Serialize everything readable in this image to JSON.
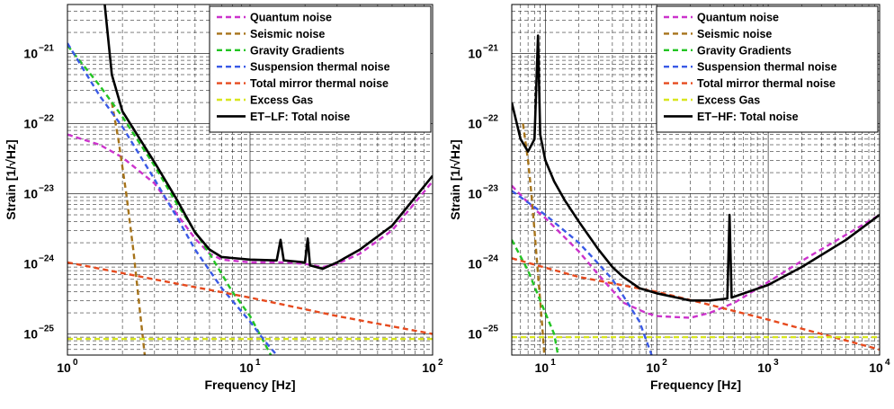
{
  "chart_data": [
    {
      "type": "line",
      "title": "",
      "xlabel": "Frequency [Hz]",
      "ylabel": "Strain [1/√Hz]",
      "x_scale": "log",
      "y_scale": "log",
      "xlim": [
        1,
        100
      ],
      "ylim": [
        5e-26,
        5e-21
      ],
      "x_ticks": [
        {
          "base": "10",
          "exp": "0"
        },
        {
          "base": "10",
          "exp": "1"
        },
        {
          "base": "10",
          "exp": "2"
        }
      ],
      "y_ticks": [
        {
          "base": "10",
          "exp": "−25"
        },
        {
          "base": "10",
          "exp": "−24"
        },
        {
          "base": "10",
          "exp": "−23"
        },
        {
          "base": "10",
          "exp": "−22"
        },
        {
          "base": "10",
          "exp": "−21"
        }
      ],
      "grid": true,
      "legend_position": "top-right",
      "series": [
        {
          "name": "Quantum noise",
          "color": "#cc33cc",
          "style": "dashed",
          "points": [
            [
              1,
              7e-23
            ],
            [
              1.5,
              5e-23
            ],
            [
              2,
              3.3e-23
            ],
            [
              3,
              1.4e-23
            ],
            [
              4,
              5e-24
            ],
            [
              5,
              2.3e-24
            ],
            [
              6,
              1.4e-24
            ],
            [
              7,
              1.15e-24
            ],
            [
              10,
              1.05e-24
            ],
            [
              15,
              1.05e-24
            ],
            [
              20,
              1e-24
            ],
            [
              25,
              9e-25
            ],
            [
              30,
              1e-24
            ],
            [
              40,
              1.4e-24
            ],
            [
              60,
              3e-24
            ],
            [
              100,
              1.5e-23
            ]
          ]
        },
        {
          "name": "Seismic noise",
          "color": "#a6731a",
          "style": "dashed",
          "points": [
            [
              1.75,
              2e-22
            ],
            [
              1.9,
              6e-23
            ],
            [
              2.1,
              1e-23
            ],
            [
              2.3,
              1.5e-24
            ],
            [
              2.5,
              2e-25
            ],
            [
              2.65,
              5e-26
            ]
          ]
        },
        {
          "name": "Gravity Gradients",
          "color": "#22c422",
          "style": "dashed",
          "points": [
            [
              1,
              1.3e-21
            ],
            [
              1.5,
              3.5e-22
            ],
            [
              2,
              1.25e-22
            ],
            [
              3,
              2.5e-23
            ],
            [
              4,
              7e-24
            ],
            [
              6,
              1.4e-24
            ],
            [
              8,
              4e-25
            ],
            [
              10,
              1.8e-25
            ],
            [
              13,
              5e-26
            ]
          ]
        },
        {
          "name": "Suspension thermal noise",
          "color": "#3a5ae6",
          "style": "dashed",
          "points": [
            [
              1,
              1.4e-21
            ],
            [
              1.5,
              2.5e-22
            ],
            [
              2,
              9e-23
            ],
            [
              3,
              1.6e-23
            ],
            [
              4,
              4.5e-24
            ],
            [
              5,
              1.6e-24
            ],
            [
              7,
              4.5e-25
            ],
            [
              10,
              1.5e-25
            ],
            [
              12,
              8e-26
            ],
            [
              14,
              5e-26
            ]
          ]
        },
        {
          "name": "Total mirror thermal noise",
          "color": "#e64a1e",
          "style": "dashed",
          "points": [
            [
              1,
              1.05e-24
            ],
            [
              3,
              6e-25
            ],
            [
              10,
              3.3e-25
            ],
            [
              30,
              1.8e-25
            ],
            [
              100,
              1e-25
            ]
          ]
        },
        {
          "name": "Excess Gas",
          "color": "#d8e61e",
          "style": "dashed",
          "points": [
            [
              1,
              8.5e-26
            ],
            [
              100,
              8.5e-26
            ]
          ]
        },
        {
          "name": "ET−LF: Total noise",
          "color": "#000000",
          "style": "solid",
          "points": [
            [
              1.6,
              5e-21
            ],
            [
              1.75,
              5e-22
            ],
            [
              2,
              1.5e-22
            ],
            [
              3,
              2.8e-23
            ],
            [
              4,
              8e-24
            ],
            [
              5,
              2.8e-24
            ],
            [
              6,
              1.6e-24
            ],
            [
              7,
              1.25e-24
            ],
            [
              10,
              1.15e-24
            ],
            [
              14,
              1.12e-24
            ],
            [
              14.7,
              2.2e-24
            ],
            [
              15.3,
              1.12e-24
            ],
            [
              20,
              1.05e-24
            ],
            [
              20.7,
              2.3e-24
            ],
            [
              21.3,
              9.5e-25
            ],
            [
              25,
              8.5e-25
            ],
            [
              30,
              1.05e-24
            ],
            [
              40,
              1.6e-24
            ],
            [
              60,
              3.5e-24
            ],
            [
              100,
              1.8e-23
            ]
          ]
        }
      ]
    },
    {
      "type": "line",
      "title": "",
      "xlabel": "Frequency [Hz]",
      "ylabel": "Strain [1/√Hz]",
      "x_scale": "log",
      "y_scale": "log",
      "xlim": [
        5,
        10000
      ],
      "ylim": [
        5e-26,
        5e-21
      ],
      "x_ticks": [
        {
          "base": "10",
          "exp": "1"
        },
        {
          "base": "10",
          "exp": "2"
        },
        {
          "base": "10",
          "exp": "3"
        },
        {
          "base": "10",
          "exp": "4"
        }
      ],
      "y_ticks": [
        {
          "base": "10",
          "exp": "−25"
        },
        {
          "base": "10",
          "exp": "−24"
        },
        {
          "base": "10",
          "exp": "−23"
        },
        {
          "base": "10",
          "exp": "−22"
        },
        {
          "base": "10",
          "exp": "−21"
        }
      ],
      "grid": true,
      "legend_position": "top-right",
      "series": [
        {
          "name": "Quantum noise",
          "color": "#cc33cc",
          "style": "dashed",
          "points": [
            [
              5,
              1.3e-23
            ],
            [
              8,
              6e-24
            ],
            [
              10,
              4.5e-24
            ],
            [
              20,
              1.5e-24
            ],
            [
              30,
              7e-25
            ],
            [
              50,
              2.8e-25
            ],
            [
              80,
              2e-25
            ],
            [
              100,
              1.8e-25
            ],
            [
              200,
              1.7e-25
            ],
            [
              300,
              2e-25
            ],
            [
              500,
              2.8e-25
            ],
            [
              1000,
              5.5e-25
            ],
            [
              2000,
              1.1e-24
            ],
            [
              5000,
              2.6e-24
            ],
            [
              10000,
              5e-24
            ]
          ]
        },
        {
          "name": "Seismic noise",
          "color": "#a6731a",
          "style": "dashed",
          "points": [
            [
              6.3,
              1e-22
            ],
            [
              7,
              3e-23
            ],
            [
              7.5,
              1e-23
            ],
            [
              8,
              3e-24
            ],
            [
              8.5,
              9e-25
            ],
            [
              9,
              3e-25
            ],
            [
              9.5,
              1e-25
            ],
            [
              9.8,
              5e-26
            ]
          ]
        },
        {
          "name": "Gravity Gradients",
          "color": "#22c422",
          "style": "dashed",
          "points": [
            [
              5,
              2.2e-24
            ],
            [
              7,
              8e-25
            ],
            [
              9,
              3e-25
            ],
            [
              10,
              2e-25
            ],
            [
              12,
              1e-25
            ],
            [
              13,
              5e-26
            ]
          ]
        },
        {
          "name": "Suspension thermal noise",
          "color": "#3a5ae6",
          "style": "dashed",
          "points": [
            [
              5,
              1.1e-23
            ],
            [
              10,
              5e-24
            ],
            [
              20,
              2e-24
            ],
            [
              30,
              1e-24
            ],
            [
              40,
              6e-25
            ],
            [
              50,
              3.5e-25
            ],
            [
              70,
              1.5e-25
            ],
            [
              90,
              5e-26
            ]
          ]
        },
        {
          "name": "Total mirror thermal noise",
          "color": "#e64a1e",
          "style": "dashed",
          "points": [
            [
              5,
              1.2e-24
            ],
            [
              20,
              6.5e-25
            ],
            [
              100,
              4e-25
            ],
            [
              300,
              2.6e-25
            ],
            [
              1000,
              1.6e-25
            ],
            [
              3000,
              1e-25
            ],
            [
              10000,
              6e-26
            ]
          ]
        },
        {
          "name": "Excess Gas",
          "color": "#d8e61e",
          "style": "dashed",
          "points": [
            [
              5,
              9e-26
            ],
            [
              10000,
              9e-26
            ]
          ]
        },
        {
          "name": "ET−HF: Total noise",
          "color": "#000000",
          "style": "solid",
          "points": [
            [
              5,
              2e-22
            ],
            [
              6,
              6e-23
            ],
            [
              7,
              4e-23
            ],
            [
              8,
              6e-23
            ],
            [
              8.6,
              1.8e-21
            ],
            [
              9,
              7e-23
            ],
            [
              10,
              3e-23
            ],
            [
              12,
              1.5e-23
            ],
            [
              15,
              8e-24
            ],
            [
              20,
              4e-24
            ],
            [
              30,
              1.6e-24
            ],
            [
              40,
              9e-25
            ],
            [
              50,
              6.5e-25
            ],
            [
              70,
              4.5e-25
            ],
            [
              100,
              3.8e-25
            ],
            [
              200,
              3e-25
            ],
            [
              300,
              3e-25
            ],
            [
              430,
              3.2e-25
            ],
            [
              450,
              5e-24
            ],
            [
              470,
              3.3e-25
            ],
            [
              1000,
              5e-25
            ],
            [
              2000,
              9e-25
            ],
            [
              5000,
              2.2e-24
            ],
            [
              10000,
              5e-24
            ]
          ]
        }
      ]
    }
  ]
}
